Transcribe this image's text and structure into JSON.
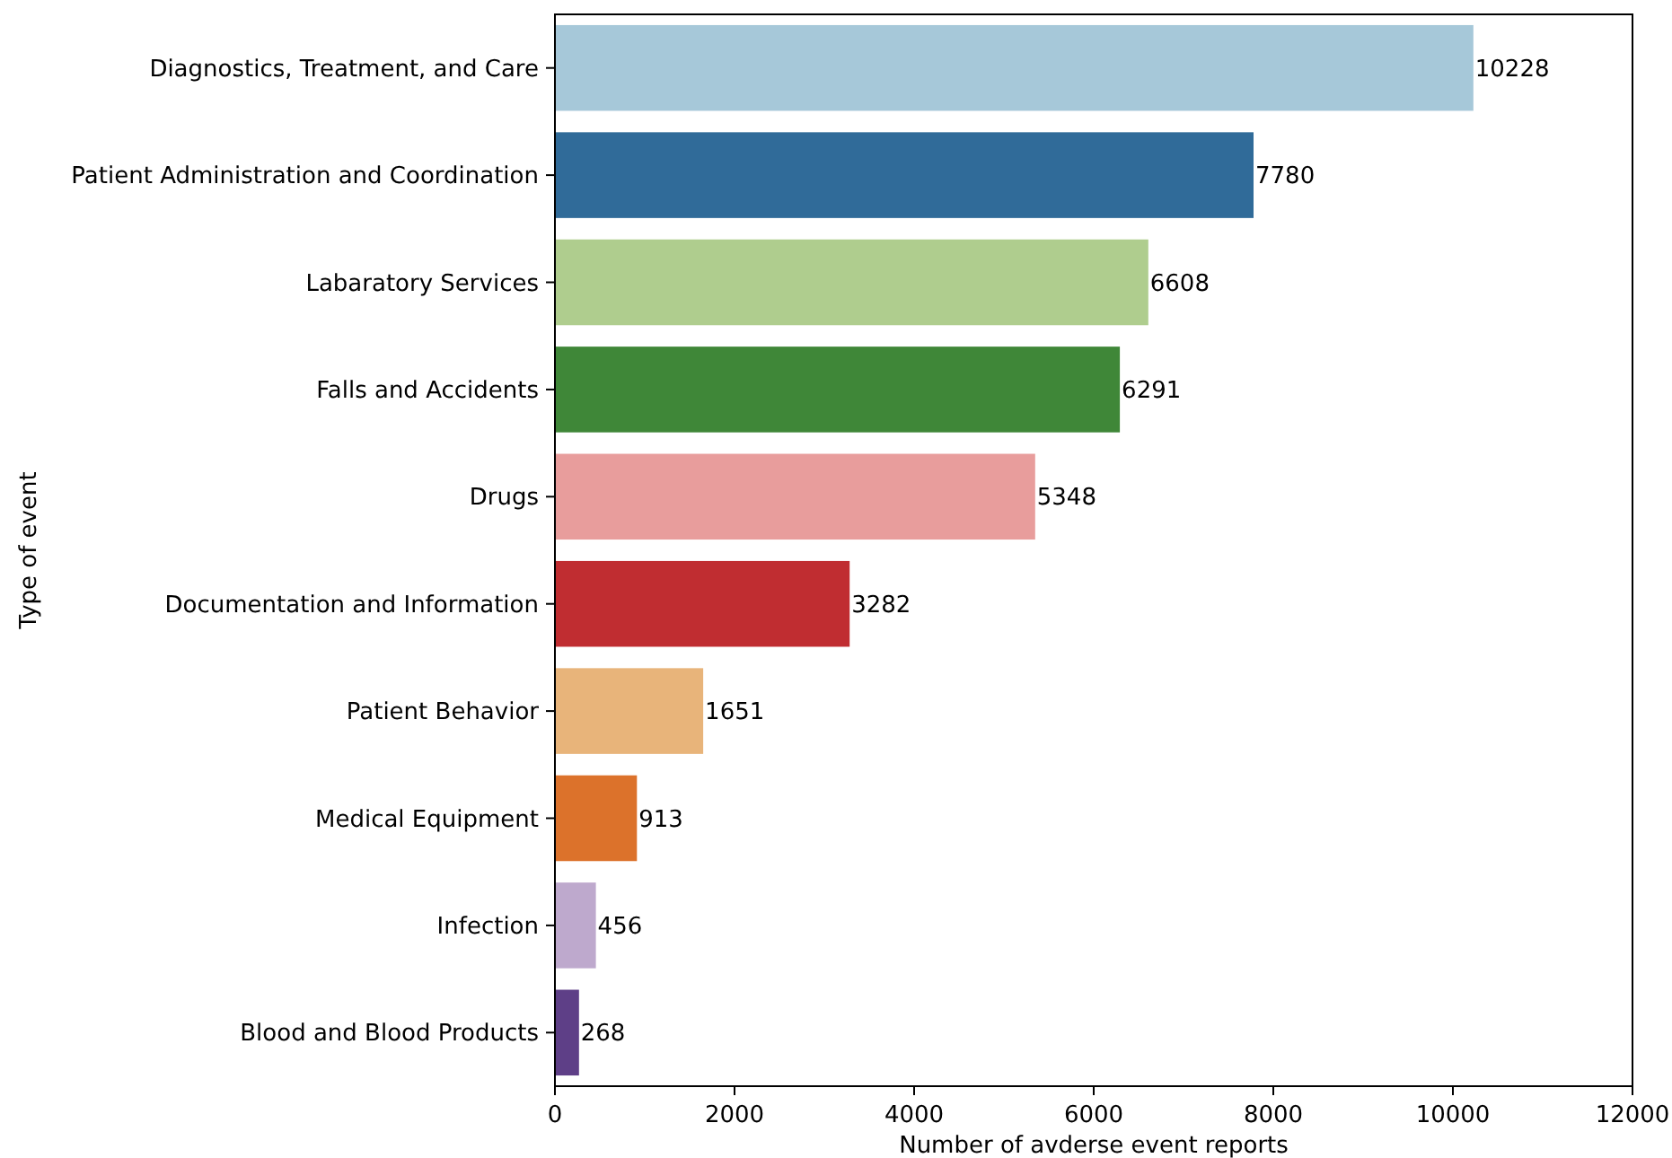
{
  "chart_data": {
    "type": "bar",
    "orientation": "horizontal",
    "xlabel": "Number of avderse event reports",
    "ylabel": "Type of event",
    "categories": [
      "Diagnostics, Treatment, and Care",
      "Patient Administration and Coordination",
      "Labaratory Services",
      "Falls and Accidents",
      "Drugs",
      "Documentation and Information",
      "Patient Behavior",
      "Medical Equipment",
      "Infection",
      "Blood and Blood Products"
    ],
    "values": [
      10228,
      7780,
      6608,
      6291,
      5348,
      3282,
      1651,
      913,
      456,
      268
    ],
    "colors": [
      "#a6c8d9",
      "#306b99",
      "#afcd8e",
      "#3f8738",
      "#e89d9c",
      "#c02d31",
      "#e8b47a",
      "#dc722b",
      "#bea9cd",
      "#5e3f87"
    ],
    "xlim": [
      0,
      12000
    ],
    "xticks": [
      0,
      2000,
      4000,
      6000,
      8000,
      10000,
      12000
    ],
    "data_labels": true,
    "grid": false
  }
}
